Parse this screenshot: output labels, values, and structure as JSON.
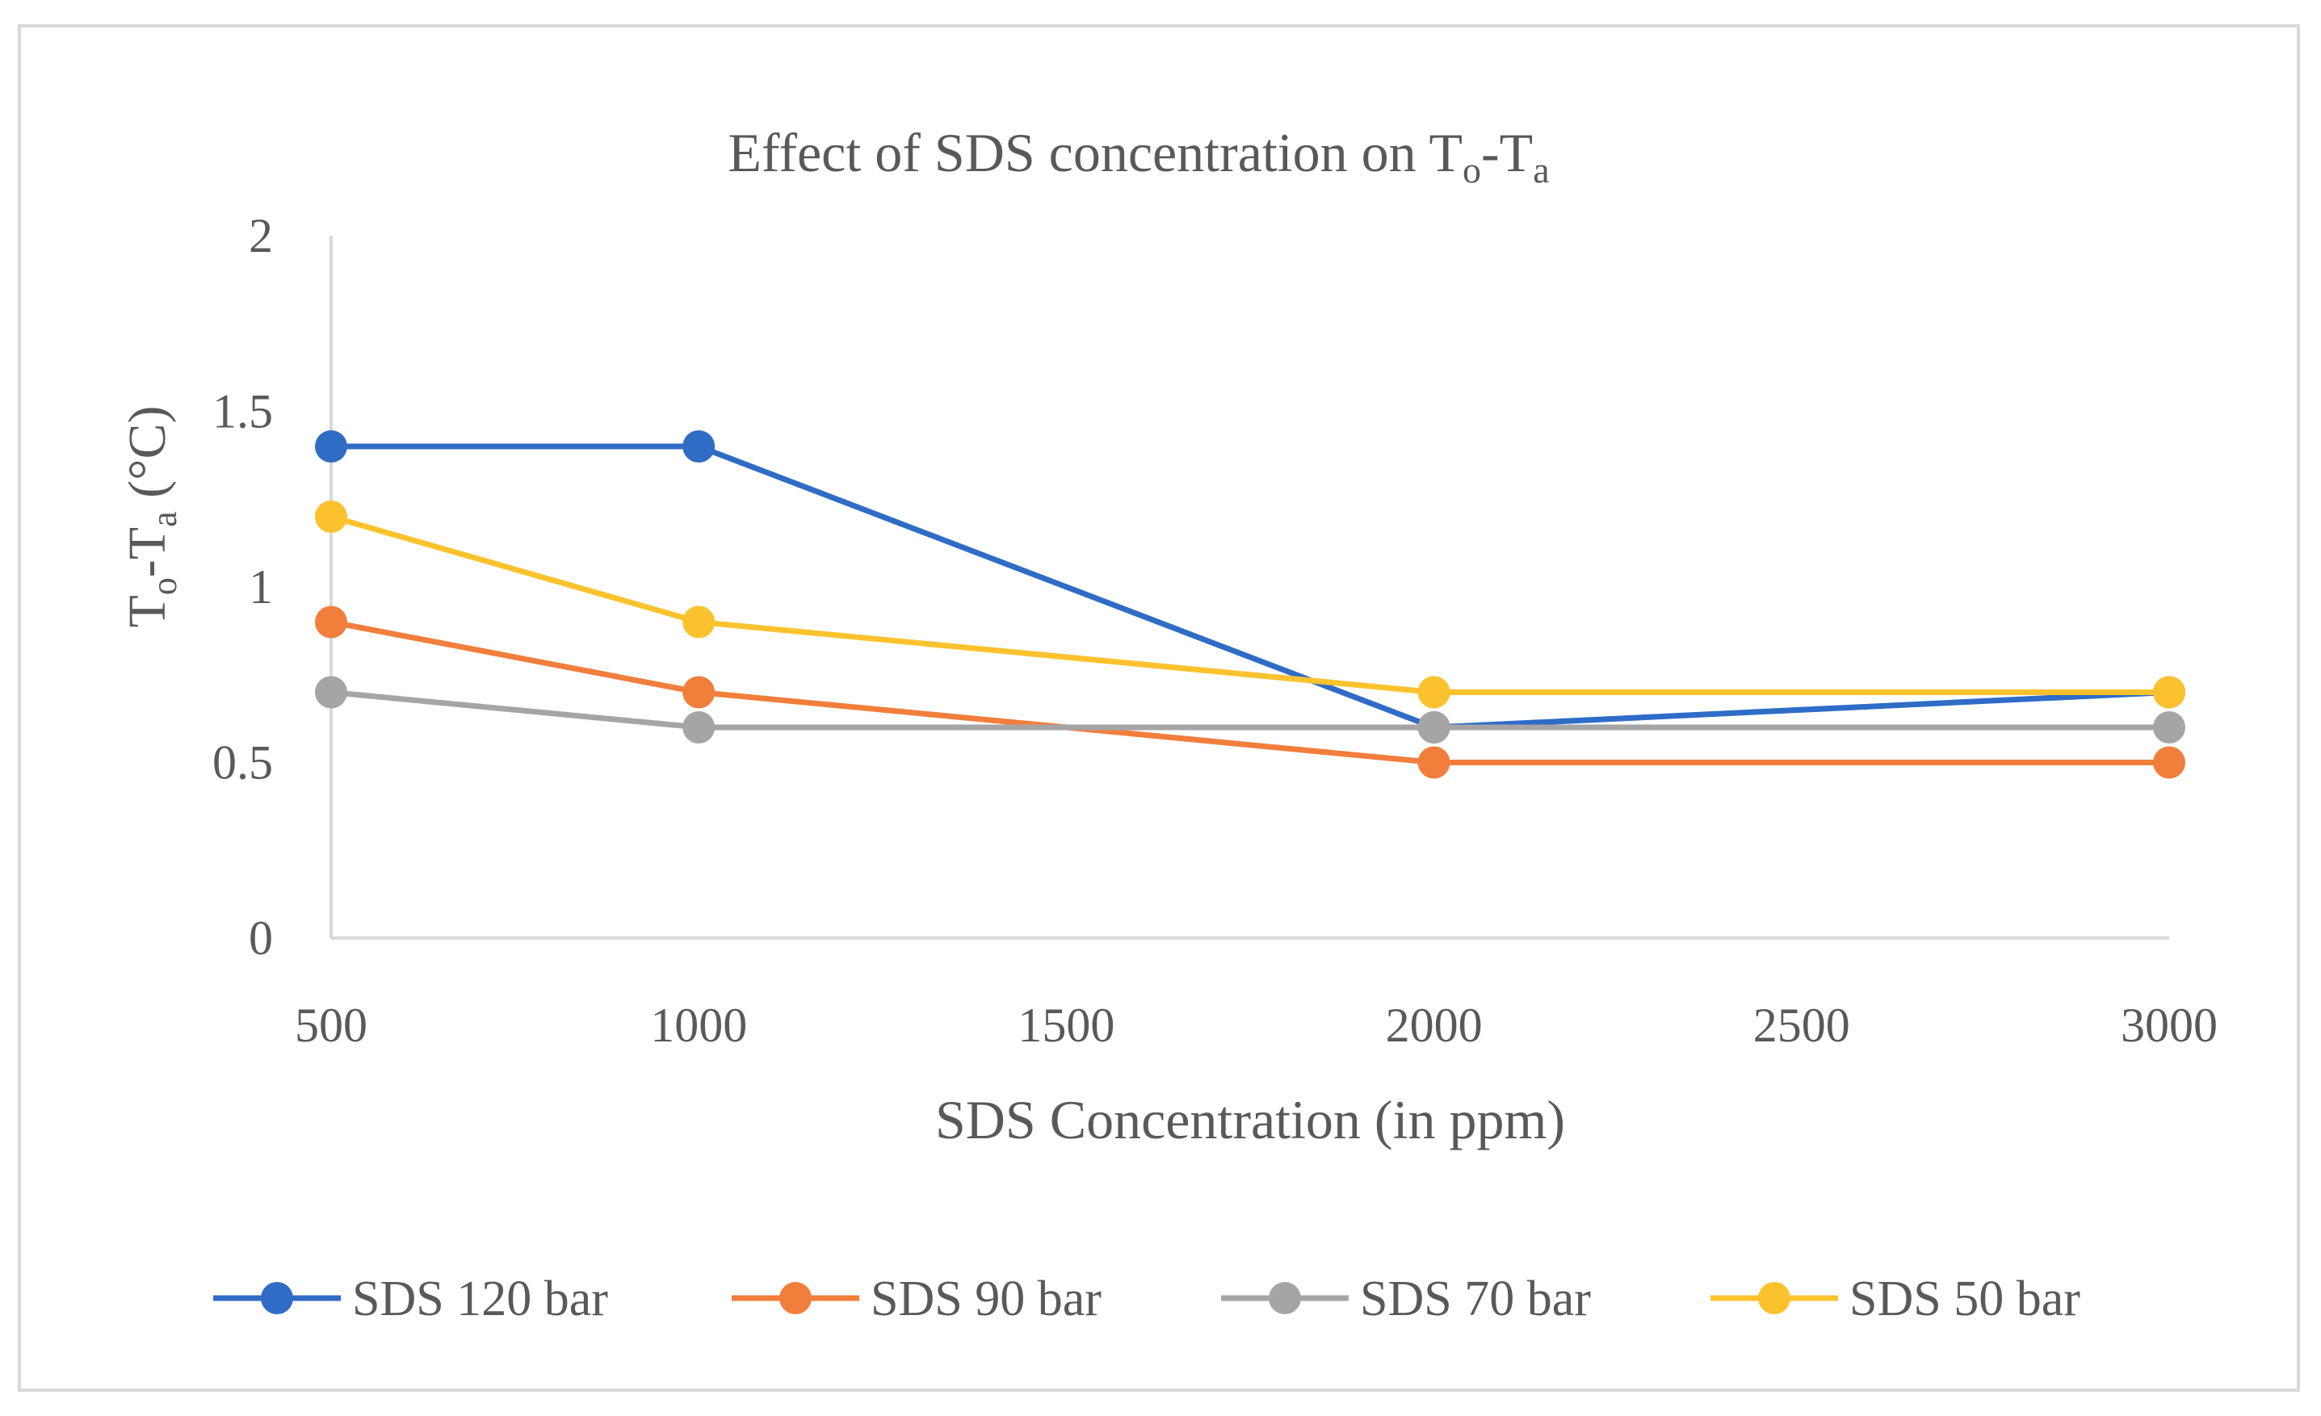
{
  "chart_data": {
    "type": "line",
    "title": {
      "prefix": "Effect of SDS concentration on T",
      "sub1": "o",
      "mid": "-T",
      "sub2": "a"
    },
    "ylabel": {
      "prefix": "T",
      "sub1": "o",
      "mid": "-T",
      "sub2": "a",
      "suffix": " (°C)"
    },
    "xlabel": "SDS Concentration (in ppm)",
    "x_ticks": [
      "500",
      "1000",
      "1500",
      "2000",
      "2500",
      "3000"
    ],
    "y_ticks": [
      "0",
      "0.5",
      "1",
      "1.5",
      "2"
    ],
    "ylim": [
      0,
      2
    ],
    "categories": [
      "500",
      "1000",
      "2000",
      "3000"
    ],
    "series": [
      {
        "name": "SDS 120 bar",
        "color": "#2f6cc6",
        "x": [
          500,
          1000,
          2000,
          3000
        ],
        "values": [
          1.4,
          1.4,
          0.6,
          0.7
        ]
      },
      {
        "name": "SDS 90 bar",
        "color": "#f27e3c",
        "x": [
          500,
          1000,
          2000,
          3000
        ],
        "values": [
          0.9,
          0.7,
          0.5,
          0.5
        ]
      },
      {
        "name": "SDS 70 bar",
        "color": "#a5a5a5",
        "x": [
          500,
          1000,
          2000,
          3000
        ],
        "values": [
          0.7,
          0.6,
          0.6,
          0.6
        ]
      },
      {
        "name": "SDS 50 bar",
        "color": "#fcc22e",
        "x": [
          500,
          1000,
          2000,
          3000
        ],
        "values": [
          1.2,
          0.9,
          0.7,
          0.7
        ]
      }
    ],
    "legend_position": "bottom"
  }
}
